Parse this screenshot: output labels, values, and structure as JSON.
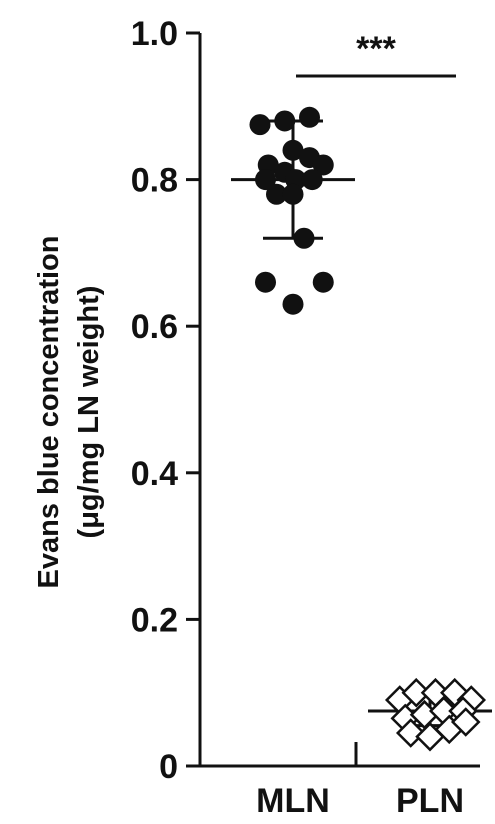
{
  "chart_data": {
    "type": "scatter",
    "ylabel_line1": "Evans blue concentration",
    "ylabel_line2": "(μg/mg LN weight)",
    "xlabel": "",
    "ylim": [
      0,
      1.0
    ],
    "yticks": [
      {
        "value": 0,
        "label": "0"
      },
      {
        "value": 0.2,
        "label": "0.2"
      },
      {
        "value": 0.4,
        "label": "0.4"
      },
      {
        "value": 0.6,
        "label": "0.6"
      },
      {
        "value": 0.8,
        "label": "0.8"
      },
      {
        "value": 1.0,
        "label": "1.0"
      }
    ],
    "categories": [
      "MLN",
      "PLN"
    ],
    "series": [
      {
        "category": "MLN",
        "marker": "filled-circle",
        "color": "#111111",
        "mean": 0.8,
        "sd": 0.08,
        "points": [
          {
            "j": -0.6,
            "v": 0.875
          },
          {
            "j": -0.15,
            "v": 0.88
          },
          {
            "j": 0.3,
            "v": 0.885
          },
          {
            "j": -0.45,
            "v": 0.82
          },
          {
            "j": 0.0,
            "v": 0.84
          },
          {
            "j": 0.3,
            "v": 0.83
          },
          {
            "j": 0.55,
            "v": 0.82
          },
          {
            "j": -0.5,
            "v": 0.8
          },
          {
            "j": -0.15,
            "v": 0.81
          },
          {
            "j": 0.05,
            "v": 0.8
          },
          {
            "j": 0.35,
            "v": 0.8
          },
          {
            "j": -0.3,
            "v": 0.78
          },
          {
            "j": 0.0,
            "v": 0.78
          },
          {
            "j": 0.2,
            "v": 0.72
          },
          {
            "j": -0.5,
            "v": 0.66
          },
          {
            "j": 0.55,
            "v": 0.66
          },
          {
            "j": 0.0,
            "v": 0.63
          }
        ]
      },
      {
        "category": "PLN",
        "marker": "open-diamond",
        "color": "#111111",
        "mean": 0.075,
        "sd": 0.02,
        "points": [
          {
            "j": -0.55,
            "v": 0.09
          },
          {
            "j": -0.25,
            "v": 0.1
          },
          {
            "j": 0.1,
            "v": 0.1
          },
          {
            "j": 0.45,
            "v": 0.1
          },
          {
            "j": 0.75,
            "v": 0.09
          },
          {
            "j": -0.45,
            "v": 0.065
          },
          {
            "j": -0.1,
            "v": 0.07
          },
          {
            "j": 0.25,
            "v": 0.075
          },
          {
            "j": 0.6,
            "v": 0.075
          },
          {
            "j": -0.35,
            "v": 0.045
          },
          {
            "j": 0.0,
            "v": 0.04
          },
          {
            "j": 0.35,
            "v": 0.05
          },
          {
            "j": 0.65,
            "v": 0.06
          }
        ]
      }
    ],
    "significance": {
      "label": "***",
      "from": "MLN",
      "to": "PLN"
    }
  }
}
